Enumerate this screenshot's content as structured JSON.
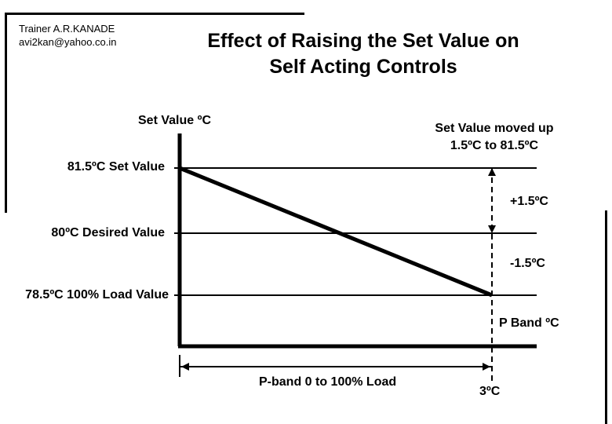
{
  "header": {
    "trainer_name": "Trainer A.R.KANADE",
    "trainer_email": "avi2kan@yahoo.co.in",
    "title_line1": "Effect of Raising  the Set Value on",
    "title_line2": "Self Acting Controls"
  },
  "diagram": {
    "axis_title": "Set Value ºC",
    "moved_line1": "Set Value moved up",
    "moved_line2": "1.5ºC to 81.5ºC",
    "set_value_label": "81.5ºC Set Value",
    "desired_value_label": "80ºC Desired Value",
    "load_value_label": "78.5ºC 100% Load Value",
    "plus_label": "+1.5ºC",
    "minus_label": "-1.5ºC",
    "pband_unit_label": "P Band ºC",
    "pband_range_label": "P-band  0 to 100% Load",
    "pband_value_label": "3ºC"
  }
}
